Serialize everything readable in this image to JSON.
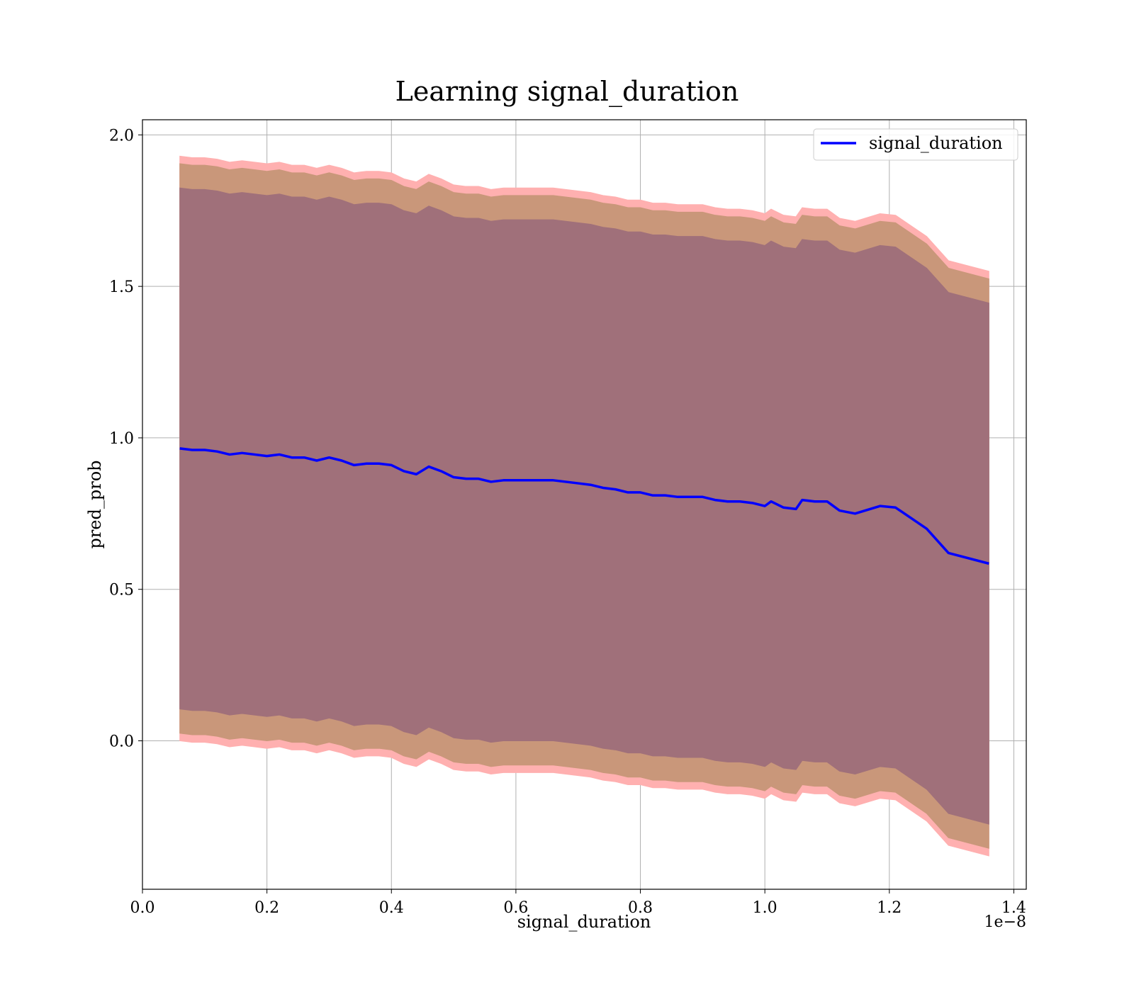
{
  "chart_data": {
    "type": "line",
    "title": "Learning signal_duration",
    "xlabel": "signal_duration",
    "ylabel": "pred_prob",
    "x_offset_label": "1e−8",
    "xlim": [
      0.0,
      1.42
    ],
    "ylim": [
      -0.49,
      2.05
    ],
    "x_ticks": [
      "0.0",
      "0.2",
      "0.4",
      "0.6",
      "0.8",
      "1.0",
      "1.2",
      "1.4"
    ],
    "y_ticks": [
      "0.0",
      "0.5",
      "1.0",
      "1.5",
      "2.0"
    ],
    "grid": true,
    "legend_position": "top-right",
    "colors": {
      "line": "#0000ff",
      "band_outer": "#ffb0b0",
      "band_mid": "#c9977a",
      "band_inner": "#a0707a"
    },
    "x": [
      0.06,
      0.08,
      0.1,
      0.12,
      0.14,
      0.16,
      0.18,
      0.2,
      0.22,
      0.24,
      0.26,
      0.28,
      0.3,
      0.32,
      0.34,
      0.36,
      0.38,
      0.4,
      0.42,
      0.44,
      0.46,
      0.48,
      0.5,
      0.52,
      0.54,
      0.56,
      0.58,
      0.6,
      0.62,
      0.64,
      0.66,
      0.68,
      0.7,
      0.72,
      0.74,
      0.76,
      0.78,
      0.8,
      0.82,
      0.84,
      0.86,
      0.88,
      0.9,
      0.92,
      0.94,
      0.96,
      0.98,
      1.0,
      1.01,
      1.03,
      1.05,
      1.06,
      1.08,
      1.1,
      1.12,
      1.145,
      1.185,
      1.21,
      1.26,
      1.295,
      1.36
    ],
    "series": [
      {
        "name": "signal_duration",
        "values": [
          0.965,
          0.96,
          0.96,
          0.955,
          0.945,
          0.95,
          0.945,
          0.94,
          0.945,
          0.935,
          0.935,
          0.925,
          0.935,
          0.925,
          0.91,
          0.915,
          0.915,
          0.91,
          0.89,
          0.88,
          0.905,
          0.89,
          0.87,
          0.865,
          0.865,
          0.855,
          0.86,
          0.86,
          0.86,
          0.86,
          0.86,
          0.855,
          0.85,
          0.845,
          0.835,
          0.83,
          0.82,
          0.82,
          0.81,
          0.81,
          0.805,
          0.805,
          0.805,
          0.795,
          0.79,
          0.79,
          0.785,
          0.775,
          0.79,
          0.77,
          0.765,
          0.795,
          0.79,
          0.79,
          0.76,
          0.75,
          0.775,
          0.77,
          0.7,
          0.62,
          0.585
        ]
      }
    ]
  }
}
